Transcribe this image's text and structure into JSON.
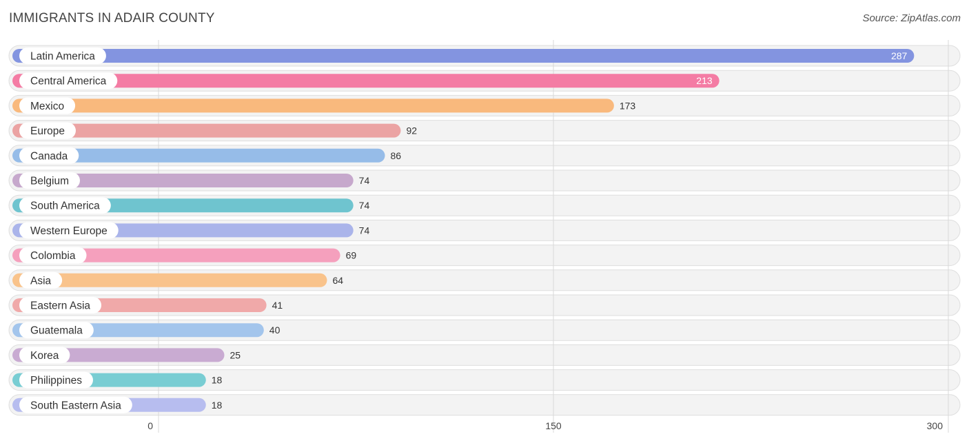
{
  "title": "IMMIGRANTS IN ADAIR COUNTY",
  "source": "Source: ZipAtlas.com",
  "chart_data": {
    "type": "bar",
    "orientation": "horizontal",
    "title": "IMMIGRANTS IN ADAIR COUNTY",
    "categories": [
      "Latin America",
      "Central America",
      "Mexico",
      "Europe",
      "Canada",
      "Belgium",
      "South America",
      "Western Europe",
      "Colombia",
      "Asia",
      "Eastern Asia",
      "Guatemala",
      "Korea",
      "Philippines",
      "South Eastern Asia"
    ],
    "values": [
      287,
      213,
      173,
      92,
      86,
      74,
      74,
      74,
      69,
      64,
      41,
      40,
      25,
      18,
      18
    ],
    "colors": [
      "#8394e0",
      "#f47ca4",
      "#f9b97d",
      "#eba3a3",
      "#96bce8",
      "#c6a8cc",
      "#6fc4cf",
      "#aab4ea",
      "#f5a0bd",
      "#f9c38b",
      "#f0a9a9",
      "#a3c5ec",
      "#c9abd2",
      "#79cdd3",
      "#b7bdef"
    ],
    "xlim": [
      0,
      300
    ],
    "xticks": [
      0,
      150,
      300
    ],
    "grid": true
  }
}
